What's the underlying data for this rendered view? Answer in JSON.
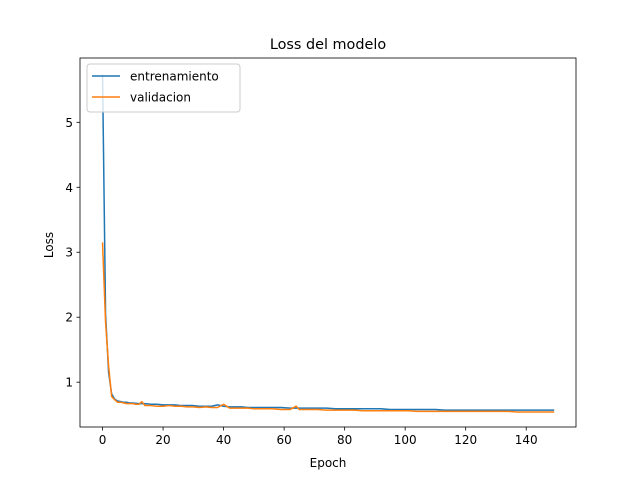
{
  "chart_data": {
    "type": "line",
    "title": "Loss del modelo",
    "xlabel": "Epoch",
    "ylabel": "Loss",
    "xlim": [
      -7.45,
      156.45
    ],
    "ylim": [
      0.31,
      5.99
    ],
    "xticks": [
      0,
      20,
      40,
      60,
      80,
      100,
      120,
      140
    ],
    "yticks": [
      1,
      2,
      3,
      4,
      5
    ],
    "grid": false,
    "legend": "top-left",
    "series": [
      {
        "name": "entrenamiento",
        "color": "#1f77b4",
        "x": [
          0,
          1,
          2,
          3,
          4,
          5,
          6,
          7,
          8,
          9,
          10,
          12,
          14,
          16,
          18,
          20,
          22,
          24,
          26,
          28,
          30,
          32,
          34,
          36,
          38,
          40,
          42,
          44,
          46,
          48,
          50,
          53,
          56,
          59,
          62,
          65,
          68,
          71,
          74,
          77,
          80,
          83,
          86,
          89,
          92,
          95,
          98,
          101,
          104,
          107,
          110,
          113,
          116,
          119,
          122,
          125,
          128,
          131,
          134,
          137,
          140,
          143,
          146,
          149
        ],
        "y": [
          5.72,
          2.05,
          1.15,
          0.82,
          0.74,
          0.71,
          0.7,
          0.69,
          0.69,
          0.68,
          0.68,
          0.67,
          0.67,
          0.66,
          0.66,
          0.65,
          0.65,
          0.65,
          0.64,
          0.64,
          0.64,
          0.63,
          0.63,
          0.63,
          0.65,
          0.63,
          0.62,
          0.62,
          0.62,
          0.61,
          0.61,
          0.61,
          0.61,
          0.61,
          0.6,
          0.6,
          0.6,
          0.6,
          0.6,
          0.59,
          0.59,
          0.59,
          0.59,
          0.59,
          0.59,
          0.58,
          0.58,
          0.58,
          0.58,
          0.58,
          0.58,
          0.57,
          0.57,
          0.57,
          0.57,
          0.57,
          0.57,
          0.57,
          0.57,
          0.57,
          0.57,
          0.57,
          0.57,
          0.57
        ]
      },
      {
        "name": "validacion",
        "color": "#ff7f0e",
        "x": [
          0,
          1,
          2,
          3,
          4,
          5,
          6,
          7,
          8,
          9,
          10,
          11,
          12,
          13,
          14,
          16,
          18,
          20,
          22,
          24,
          26,
          28,
          30,
          32,
          34,
          36,
          38,
          40,
          42,
          44,
          46,
          48,
          50,
          53,
          56,
          59,
          62,
          64,
          65,
          68,
          71,
          74,
          77,
          80,
          83,
          86,
          89,
          92,
          95,
          98,
          101,
          104,
          107,
          110,
          113,
          116,
          119,
          122,
          125,
          128,
          131,
          134,
          137,
          140,
          143,
          146,
          149
        ],
        "y": [
          3.14,
          1.92,
          1.25,
          0.78,
          0.73,
          0.69,
          0.69,
          0.68,
          0.67,
          0.67,
          0.67,
          0.66,
          0.66,
          0.7,
          0.64,
          0.64,
          0.63,
          0.63,
          0.64,
          0.63,
          0.63,
          0.62,
          0.62,
          0.61,
          0.62,
          0.61,
          0.61,
          0.66,
          0.6,
          0.6,
          0.6,
          0.6,
          0.59,
          0.59,
          0.59,
          0.58,
          0.58,
          0.63,
          0.58,
          0.58,
          0.58,
          0.57,
          0.57,
          0.57,
          0.57,
          0.56,
          0.56,
          0.56,
          0.56,
          0.56,
          0.56,
          0.55,
          0.55,
          0.55,
          0.55,
          0.55,
          0.55,
          0.55,
          0.55,
          0.55,
          0.55,
          0.55,
          0.54,
          0.54,
          0.54,
          0.54,
          0.54
        ]
      }
    ]
  }
}
